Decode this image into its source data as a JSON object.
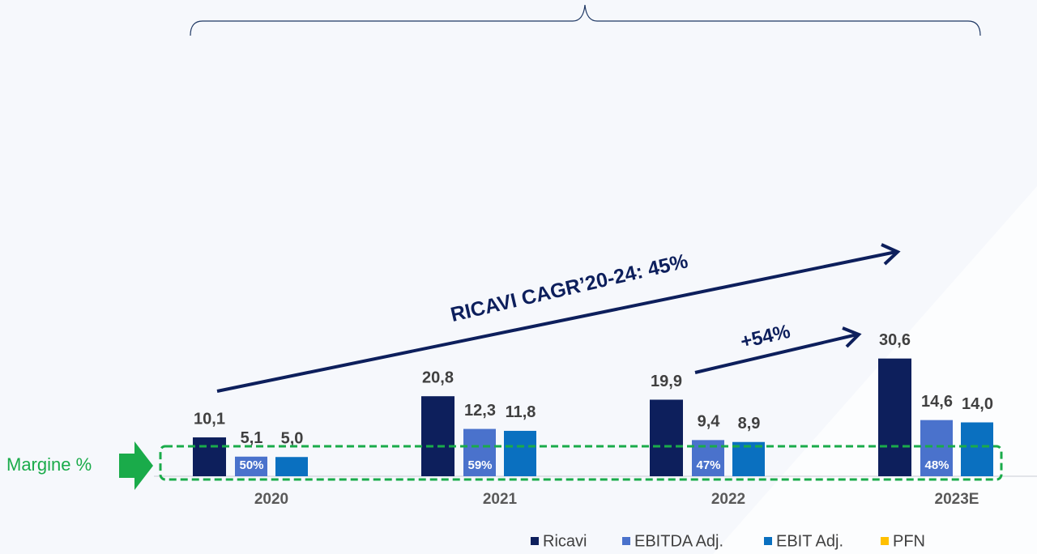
{
  "chart_data": {
    "type": "bar",
    "categories": [
      "2020",
      "2021",
      "2022",
      "2023E"
    ],
    "series": [
      {
        "name": "Ricavi",
        "color": "#0d1f5c",
        "values": [
          10.1,
          20.8,
          19.9,
          30.6
        ],
        "value_labels": [
          "10,1",
          "20,8",
          "19,9",
          "30,6"
        ]
      },
      {
        "name": "EBITDA Adj.",
        "color": "#4a72cc",
        "values": [
          5.1,
          12.3,
          9.4,
          14.6
        ],
        "value_labels": [
          "5,1",
          "12,3",
          "9,4",
          "14,6"
        ]
      },
      {
        "name": "EBIT Adj.",
        "color": "#0a70c0",
        "values": [
          5.0,
          11.8,
          8.9,
          14.0
        ],
        "value_labels": [
          "5,0",
          "11,8",
          "8,9",
          "14,0"
        ]
      },
      {
        "name": "PFN",
        "color": "#ffc000"
      }
    ],
    "margin": {
      "values": [
        50,
        59,
        47,
        48
      ],
      "value_labels": [
        "50%",
        "59%",
        "47%",
        "48%"
      ]
    },
    "annotations": {
      "cagr": "RICAVI CAGR’20-24: 45%",
      "growth": "+54%",
      "margin_label": "Margine %"
    }
  }
}
